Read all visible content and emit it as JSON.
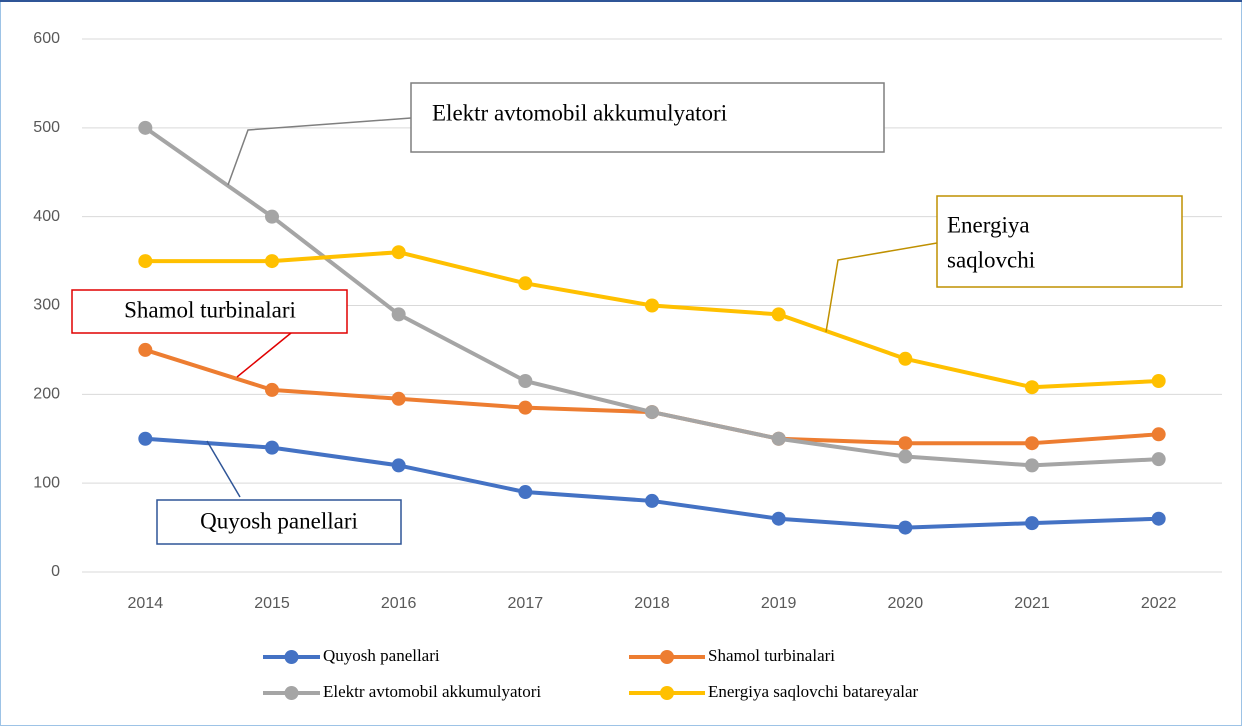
{
  "chart_data": {
    "type": "line",
    "categories": [
      "2014",
      "2015",
      "2016",
      "2017",
      "2018",
      "2019",
      "2020",
      "2021",
      "2022"
    ],
    "series": [
      {
        "name": "Quyosh panellari",
        "color": "#4472c4",
        "values": [
          150,
          140,
          120,
          90,
          80,
          60,
          50,
          55,
          60
        ]
      },
      {
        "name": "Shamol turbinalari",
        "color": "#ed7d31",
        "values": [
          250,
          205,
          195,
          185,
          180,
          150,
          145,
          145,
          155
        ]
      },
      {
        "name": "Elektr avtomobil akkumulyatori",
        "color": "#a5a5a5",
        "values": [
          500,
          400,
          290,
          215,
          180,
          150,
          130,
          120,
          127
        ]
      },
      {
        "name": "Energiya saqlovchi batareyalar",
        "color": "#ffc000",
        "values": [
          350,
          350,
          360,
          325,
          300,
          290,
          240,
          208,
          215
        ]
      }
    ],
    "ylim": [
      0,
      600
    ],
    "yticks": [
      0,
      100,
      200,
      300,
      400,
      500,
      600
    ],
    "grid": true,
    "legend": "bottom",
    "annotations": {
      "elektr": "Elektr avtomobil akkumulyatori",
      "energiya": [
        "Energiya",
        "saqlovchi"
      ],
      "shamol": "Shamol turbinalari",
      "quyosh": "Quyosh panellari"
    }
  }
}
